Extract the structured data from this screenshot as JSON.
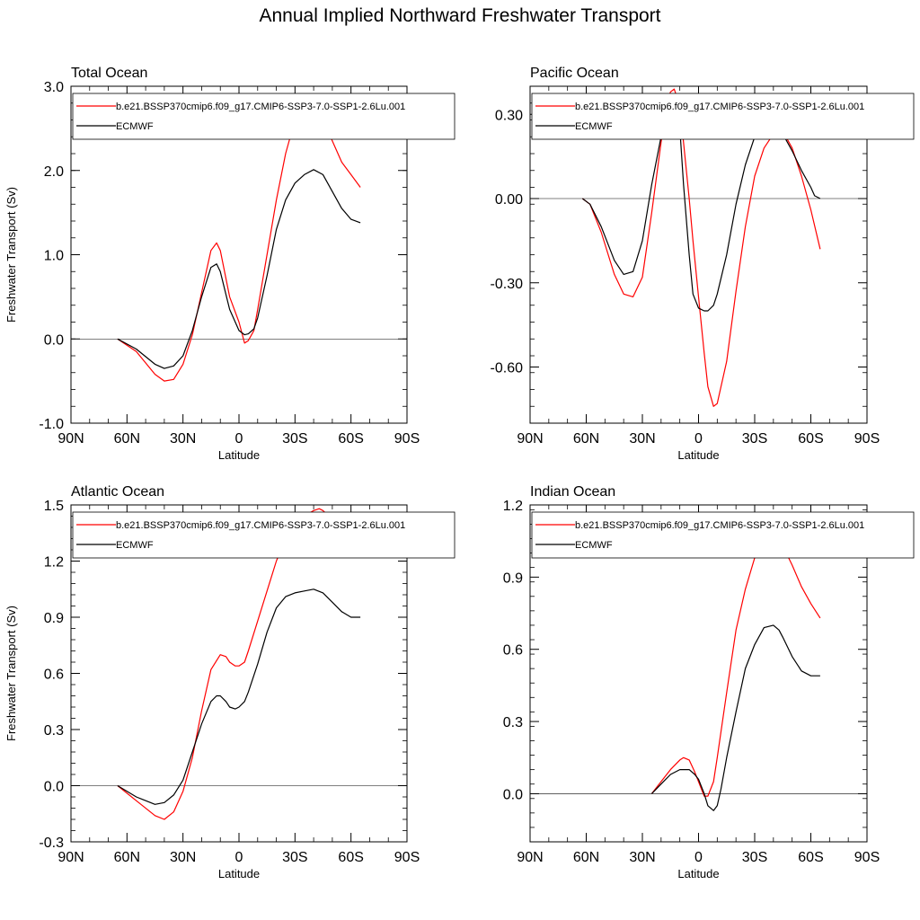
{
  "title": "Annual Implied Northward Freshwater Transport",
  "colors": {
    "model": "#ff0000",
    "obs": "#000000",
    "frame": "#000000"
  },
  "chart_data": [
    {
      "type": "line",
      "title": "Total Ocean",
      "xlabel": "Latitude",
      "ylabel": "Freshwater Transport (Sv)",
      "xlim": [
        90,
        -90
      ],
      "ylim": [
        -1.0,
        3.0
      ],
      "xticks": [
        90,
        60,
        30,
        0,
        -30,
        -60,
        -90
      ],
      "xtick_labels": [
        "90N",
        "60N",
        "30N",
        "0",
        "30S",
        "60S",
        "90S"
      ],
      "yticks": [
        -1.0,
        0.0,
        1.0,
        2.0,
        3.0
      ],
      "ytick_labels": [
        "-1.0",
        "0.0",
        "1.0",
        "2.0",
        "3.0"
      ],
      "legend_position": "top",
      "series": [
        {
          "name": "b.e21.BSSP370cmip6.f09_g17.CMIP6-SSP3-7.0-SSP1-2.6Lu.001",
          "x": [
            65,
            55,
            45,
            40,
            35,
            30,
            25,
            20,
            15,
            12,
            10,
            5,
            0,
            -3,
            -5,
            -8,
            -10,
            -15,
            -20,
            -25,
            -30,
            -35,
            -40,
            -45,
            -50,
            -55,
            -60,
            -65
          ],
          "y": [
            0.0,
            -0.15,
            -0.42,
            -0.5,
            -0.48,
            -0.3,
            0.05,
            0.55,
            1.05,
            1.14,
            1.05,
            0.5,
            0.2,
            -0.05,
            -0.02,
            0.1,
            0.35,
            1.0,
            1.65,
            2.2,
            2.6,
            2.77,
            2.78,
            2.6,
            2.35,
            2.1,
            1.95,
            1.8
          ]
        },
        {
          "name": "ECMWF",
          "x": [
            65,
            55,
            45,
            40,
            35,
            30,
            25,
            20,
            15,
            12,
            10,
            5,
            0,
            -3,
            -5,
            -8,
            -10,
            -15,
            -20,
            -25,
            -30,
            -35,
            -40,
            -45,
            -50,
            -55,
            -60,
            -65
          ],
          "y": [
            0.0,
            -0.12,
            -0.3,
            -0.35,
            -0.32,
            -0.2,
            0.1,
            0.5,
            0.85,
            0.89,
            0.8,
            0.35,
            0.1,
            0.05,
            0.06,
            0.12,
            0.25,
            0.75,
            1.3,
            1.65,
            1.85,
            1.95,
            2.01,
            1.95,
            1.75,
            1.55,
            1.42,
            1.38
          ]
        }
      ]
    },
    {
      "type": "line",
      "title": "Pacific Ocean",
      "xlabel": "Latitude",
      "ylabel": "",
      "xlim": [
        90,
        -90
      ],
      "ylim": [
        -0.8,
        0.4
      ],
      "xticks": [
        90,
        60,
        30,
        0,
        -30,
        -60,
        -90
      ],
      "xtick_labels": [
        "90N",
        "60N",
        "30N",
        "0",
        "30S",
        "60S",
        "90S"
      ],
      "yticks": [
        -0.6,
        -0.3,
        0.0,
        0.3
      ],
      "ytick_labels": [
        "-0.60",
        "-0.30",
        "0.00",
        "0.30"
      ],
      "legend_position": "top",
      "series": [
        {
          "name": "b.e21.BSSP370cmip6.f09_g17.CMIP6-SSP3-7.0-SSP1-2.6Lu.001",
          "x": [
            62,
            58,
            52,
            45,
            40,
            35,
            30,
            25,
            20,
            17,
            15,
            13,
            10,
            8,
            5,
            3,
            0,
            -3,
            -5,
            -8,
            -10,
            -15,
            -20,
            -25,
            -30,
            -35,
            -40,
            -42,
            -45,
            -50,
            -55,
            -60,
            -65
          ],
          "y": [
            0.0,
            -0.02,
            -0.12,
            -0.27,
            -0.34,
            -0.35,
            -0.28,
            -0.05,
            0.2,
            0.34,
            0.38,
            0.39,
            0.33,
            0.2,
            0.0,
            -0.15,
            -0.35,
            -0.55,
            -0.67,
            -0.74,
            -0.73,
            -0.58,
            -0.33,
            -0.1,
            0.08,
            0.18,
            0.23,
            0.25,
            0.24,
            0.18,
            0.08,
            -0.04,
            -0.18
          ]
        },
        {
          "name": "ECMWF",
          "x": [
            62,
            58,
            52,
            45,
            40,
            35,
            30,
            25,
            20,
            17,
            15,
            13,
            10,
            8,
            5,
            3,
            0,
            -3,
            -5,
            -8,
            -10,
            -15,
            -20,
            -25,
            -30,
            -35,
            -38,
            -40,
            -45,
            -50,
            -55,
            -60,
            -62,
            -65
          ],
          "y": [
            0.0,
            -0.02,
            -0.1,
            -0.22,
            -0.27,
            -0.26,
            -0.15,
            0.05,
            0.22,
            0.32,
            0.36,
            0.35,
            0.25,
            0.05,
            -0.2,
            -0.34,
            -0.39,
            -0.4,
            -0.4,
            -0.38,
            -0.34,
            -0.2,
            -0.02,
            0.12,
            0.22,
            0.26,
            0.27,
            0.27,
            0.23,
            0.17,
            0.1,
            0.04,
            0.01,
            0.0
          ]
        }
      ]
    },
    {
      "type": "line",
      "title": "Atlantic Ocean",
      "xlabel": "Latitude",
      "ylabel": "Freshwater Transport (Sv)",
      "xlim": [
        90,
        -90
      ],
      "ylim": [
        -0.3,
        1.5
      ],
      "xticks": [
        90,
        60,
        30,
        0,
        -30,
        -60,
        -90
      ],
      "xtick_labels": [
        "90N",
        "60N",
        "30N",
        "0",
        "30S",
        "60S",
        "90S"
      ],
      "yticks": [
        -0.3,
        0.0,
        0.3,
        0.6,
        0.9,
        1.2,
        1.5
      ],
      "ytick_labels": [
        "-0.3",
        "0.0",
        "0.3",
        "0.6",
        "0.9",
        "1.2",
        "1.5"
      ],
      "legend_position": "top",
      "series": [
        {
          "name": "b.e21.BSSP370cmip6.f09_g17.CMIP6-SSP3-7.0-SSP1-2.6Lu.001",
          "x": [
            65,
            55,
            45,
            40,
            35,
            30,
            25,
            20,
            15,
            10,
            7,
            5,
            2,
            0,
            -3,
            -5,
            -10,
            -15,
            -20,
            -25,
            -30,
            -35,
            -40,
            -43,
            -45,
            -50,
            -55,
            -60,
            -65
          ],
          "y": [
            0.0,
            -0.08,
            -0.16,
            -0.18,
            -0.14,
            -0.03,
            0.15,
            0.4,
            0.62,
            0.7,
            0.69,
            0.66,
            0.64,
            0.64,
            0.66,
            0.72,
            0.88,
            1.04,
            1.2,
            1.32,
            1.4,
            1.44,
            1.47,
            1.48,
            1.47,
            1.42,
            1.36,
            1.3,
            1.25
          ]
        },
        {
          "name": "ECMWF",
          "x": [
            65,
            55,
            45,
            40,
            35,
            30,
            25,
            20,
            15,
            12,
            10,
            7,
            5,
            2,
            0,
            -3,
            -5,
            -10,
            -15,
            -20,
            -25,
            -30,
            -35,
            -40,
            -45,
            -50,
            -55,
            -60,
            -65
          ],
          "y": [
            0.0,
            -0.06,
            -0.1,
            -0.09,
            -0.05,
            0.03,
            0.18,
            0.33,
            0.45,
            0.48,
            0.48,
            0.45,
            0.42,
            0.41,
            0.42,
            0.45,
            0.5,
            0.65,
            0.82,
            0.95,
            1.01,
            1.03,
            1.04,
            1.05,
            1.03,
            0.98,
            0.93,
            0.9,
            0.9
          ]
        }
      ]
    },
    {
      "type": "line",
      "title": "Indian Ocean",
      "xlabel": "Latitude",
      "ylabel": "",
      "xlim": [
        90,
        -90
      ],
      "ylim": [
        -0.2,
        1.2
      ],
      "xticks": [
        90,
        60,
        30,
        0,
        -30,
        -60,
        -90
      ],
      "xtick_labels": [
        "90N",
        "60N",
        "30N",
        "0",
        "30S",
        "60S",
        "90S"
      ],
      "yticks": [
        0.0,
        0.3,
        0.6,
        0.9,
        1.2
      ],
      "ytick_labels": [
        "0.0",
        "0.3",
        "0.6",
        "0.9",
        "1.2"
      ],
      "legend_position": "top",
      "series": [
        {
          "name": "b.e21.BSSP370cmip6.f09_g17.CMIP6-SSP3-7.0-SSP1-2.6Lu.001",
          "x": [
            25,
            20,
            15,
            10,
            8,
            5,
            2,
            0,
            -3,
            -5,
            -8,
            -10,
            -15,
            -20,
            -25,
            -30,
            -35,
            -40,
            -45,
            -50,
            -55,
            -60,
            -65
          ],
          "y": [
            0.0,
            0.05,
            0.1,
            0.14,
            0.15,
            0.14,
            0.09,
            0.05,
            -0.01,
            -0.01,
            0.05,
            0.15,
            0.42,
            0.68,
            0.85,
            0.98,
            1.04,
            1.06,
            1.03,
            0.95,
            0.86,
            0.79,
            0.73
          ]
        },
        {
          "name": "ECMWF",
          "x": [
            25,
            20,
            15,
            10,
            5,
            2,
            0,
            -3,
            -5,
            -8,
            -10,
            -12,
            -15,
            -20,
            -25,
            -30,
            -35,
            -40,
            -43,
            -45,
            -50,
            -55,
            -60,
            -65
          ],
          "y": [
            0.0,
            0.04,
            0.08,
            0.1,
            0.1,
            0.08,
            0.06,
            0.0,
            -0.05,
            -0.07,
            -0.05,
            0.02,
            0.15,
            0.34,
            0.52,
            0.62,
            0.69,
            0.7,
            0.68,
            0.65,
            0.57,
            0.51,
            0.49,
            0.49
          ]
        }
      ]
    }
  ]
}
